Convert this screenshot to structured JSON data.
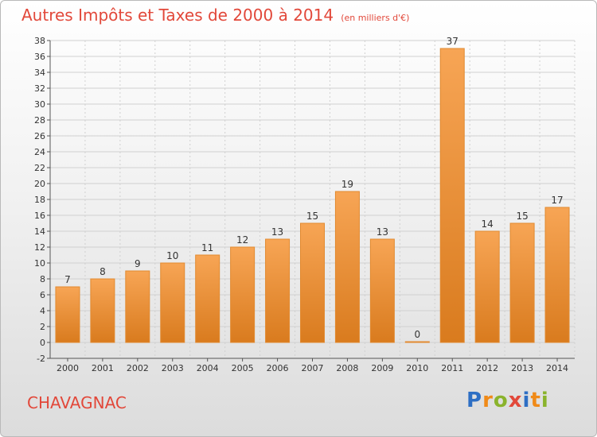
{
  "title": "Autres Impôts et Taxes de 2000 à 2014",
  "subtitle": "(en milliers d'€)",
  "commune": "CHAVAGNAC",
  "brand": "Proxiti",
  "colors": {
    "title": "#e2483a",
    "bar_top": "#f7a555",
    "bar_bottom": "#d97b1e",
    "bar_border": "#e28a30",
    "grid": "#d0d0d0",
    "axis_text": "#333333",
    "brand_letters": [
      "#2e6fc4",
      "#f08a18",
      "#8ab32c",
      "#e2483a",
      "#2e6fc4",
      "#f08a18",
      "#8ab32c"
    ]
  },
  "chart_data": {
    "type": "bar",
    "categories": [
      "2000",
      "2001",
      "2002",
      "2003",
      "2004",
      "2005",
      "2006",
      "2007",
      "2008",
      "2009",
      "2010",
      "2011",
      "2012",
      "2013",
      "2014"
    ],
    "values": [
      7,
      8,
      9,
      10,
      11,
      12,
      13,
      15,
      19,
      13,
      0,
      37,
      14,
      15,
      17
    ],
    "data_labels": [
      "7",
      "8",
      "9",
      "10",
      "11",
      "12",
      "13",
      "15",
      "19",
      "13",
      "0",
      "37",
      "14",
      "15",
      "17"
    ],
    "title": "Autres Impôts et Taxes de 2000 à 2014",
    "xlabel": "",
    "ylabel": "",
    "ylim": [
      -2,
      38
    ],
    "yticks": [
      -2,
      0,
      2,
      4,
      6,
      8,
      10,
      12,
      14,
      16,
      18,
      20,
      22,
      24,
      26,
      28,
      30,
      32,
      34,
      36,
      38
    ],
    "grid": true,
    "legend": "none"
  }
}
